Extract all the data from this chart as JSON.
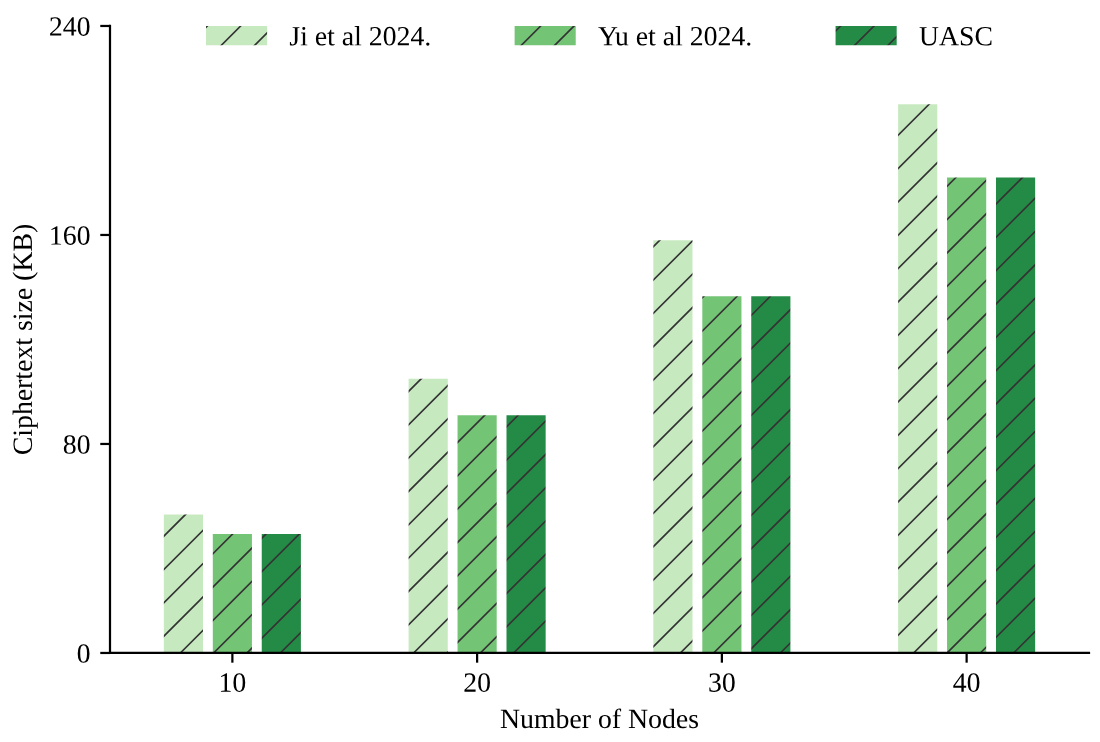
{
  "chart_data": {
    "type": "bar",
    "xlabel": "Number of Nodes",
    "ylabel": "Ciphertext size (KB)",
    "categories": [
      "10",
      "20",
      "30",
      "40"
    ],
    "series": [
      {
        "name": "Ji et al 2024.",
        "color": "#c7e9c0",
        "values": [
          53,
          105,
          158,
          210
        ]
      },
      {
        "name": "Yu et al 2024.",
        "color": "#74c476",
        "values": [
          45.5,
          91,
          136.5,
          182
        ]
      },
      {
        "name": "UASC",
        "color": "#238b45",
        "values": [
          45.5,
          91,
          136.5,
          182
        ]
      }
    ],
    "ylim": [
      0,
      240
    ],
    "yticks": [
      0,
      80,
      160,
      240
    ],
    "grid": false,
    "legend": "top"
  }
}
